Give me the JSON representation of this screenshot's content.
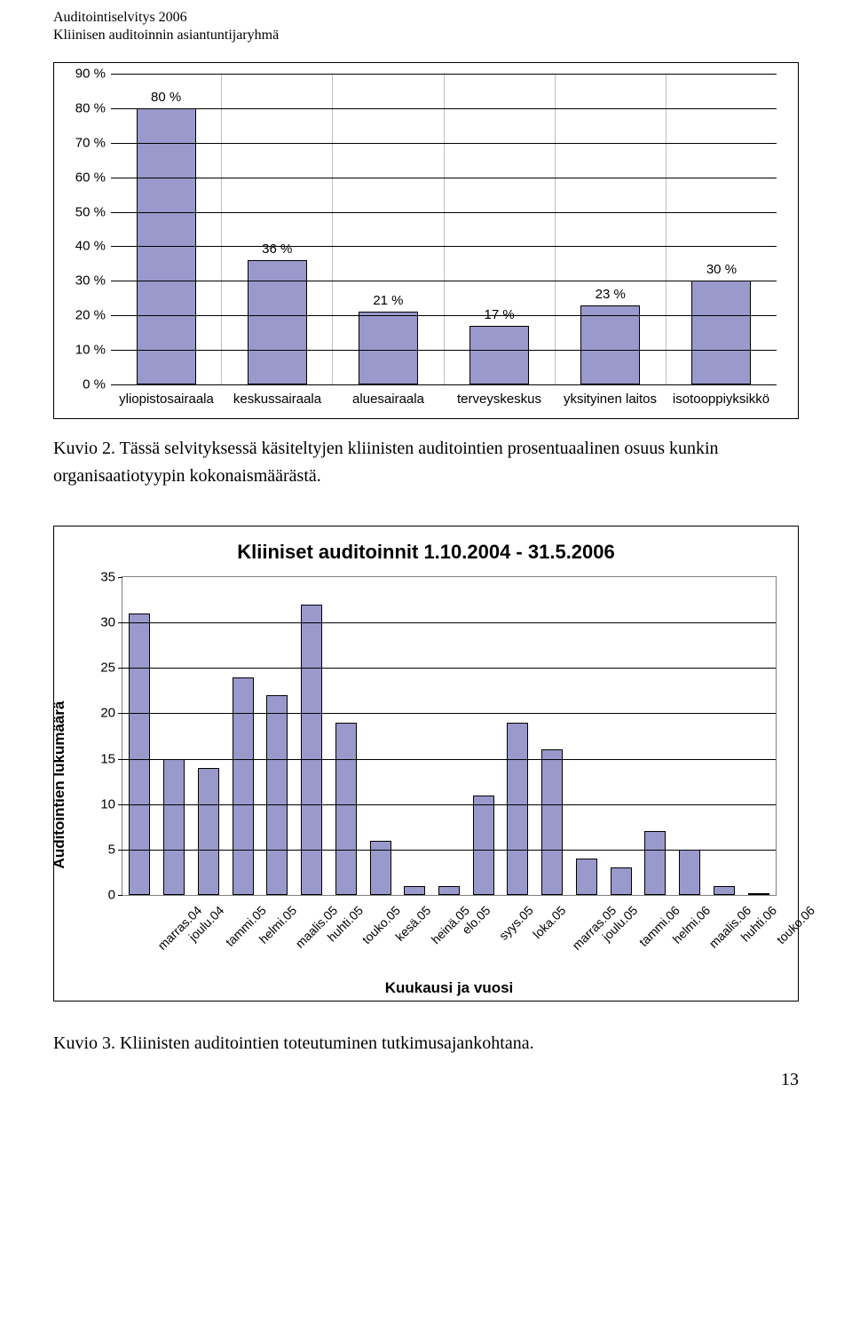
{
  "header": {
    "line1": "Auditointiselvitys 2006",
    "line2": "Kliinisen auditoinnin asiantuntijaryhmä"
  },
  "chart1": {
    "type": "bar",
    "ylim": [
      0,
      90
    ],
    "ytick_step": 10,
    "ytick_suffix": " %",
    "grid_color": "#000000",
    "category_divider_color": "#c0c0c0",
    "background_color": "#ffffff",
    "bar_fill": "#9999cc",
    "bar_border": "#000000",
    "bar_width_pct": 54,
    "label_fontsize": 15,
    "categories": [
      "yliopistosairaala",
      "keskussairaala",
      "aluesairaala",
      "terveyskeskus",
      "yksityinen laitos",
      "isotooppiyksikkö"
    ],
    "values": [
      80,
      36,
      21,
      17,
      23,
      30
    ],
    "value_suffix": " %"
  },
  "caption1": {
    "prefix": "Kuvio 2. ",
    "text": "Tässä selvityksessä käsiteltyjen kliinisten auditointien prosentuaalinen osuus kunkin organisaatiotyypin kokonaismäärästä."
  },
  "chart2": {
    "type": "bar",
    "title": "Kliiniset auditoinnit 1.10.2004 - 31.5.2006",
    "ylabel": "Auditointien lukumäärä",
    "xlabel": "Kuukausi ja vuosi",
    "ylim": [
      0,
      35
    ],
    "ytick_step": 5,
    "background_color": "#ffffff",
    "plot_border_color": "#808080",
    "grid_color": "#000000",
    "bar_fill": "#9999cc",
    "bar_border": "#000000",
    "bar_width_pct": 62,
    "label_fontsize": 15,
    "title_fontsize": 22,
    "axis_title_fontsize": 17,
    "categories": [
      "marras.04",
      "joulu.04",
      "tammi.05",
      "helmi.05",
      "maalis.05",
      "huhti.05",
      "touko.05",
      "kesä.05",
      "heinä.05",
      "elo.05",
      "syys.05",
      "loka.05",
      "marras.05",
      "joulu.05",
      "tammi.06",
      "helmi.06",
      "maalis.06",
      "huhti.06",
      "touko.06"
    ],
    "values": [
      31,
      15,
      14,
      24,
      22,
      32,
      19,
      6,
      1,
      1,
      11,
      19,
      16,
      4,
      3,
      7,
      5,
      1,
      0
    ]
  },
  "caption2": {
    "prefix": "Kuvio 3. ",
    "text": "Kliinisten auditointien toteutuminen tutkimusajankohtana."
  },
  "page_number": "13"
}
